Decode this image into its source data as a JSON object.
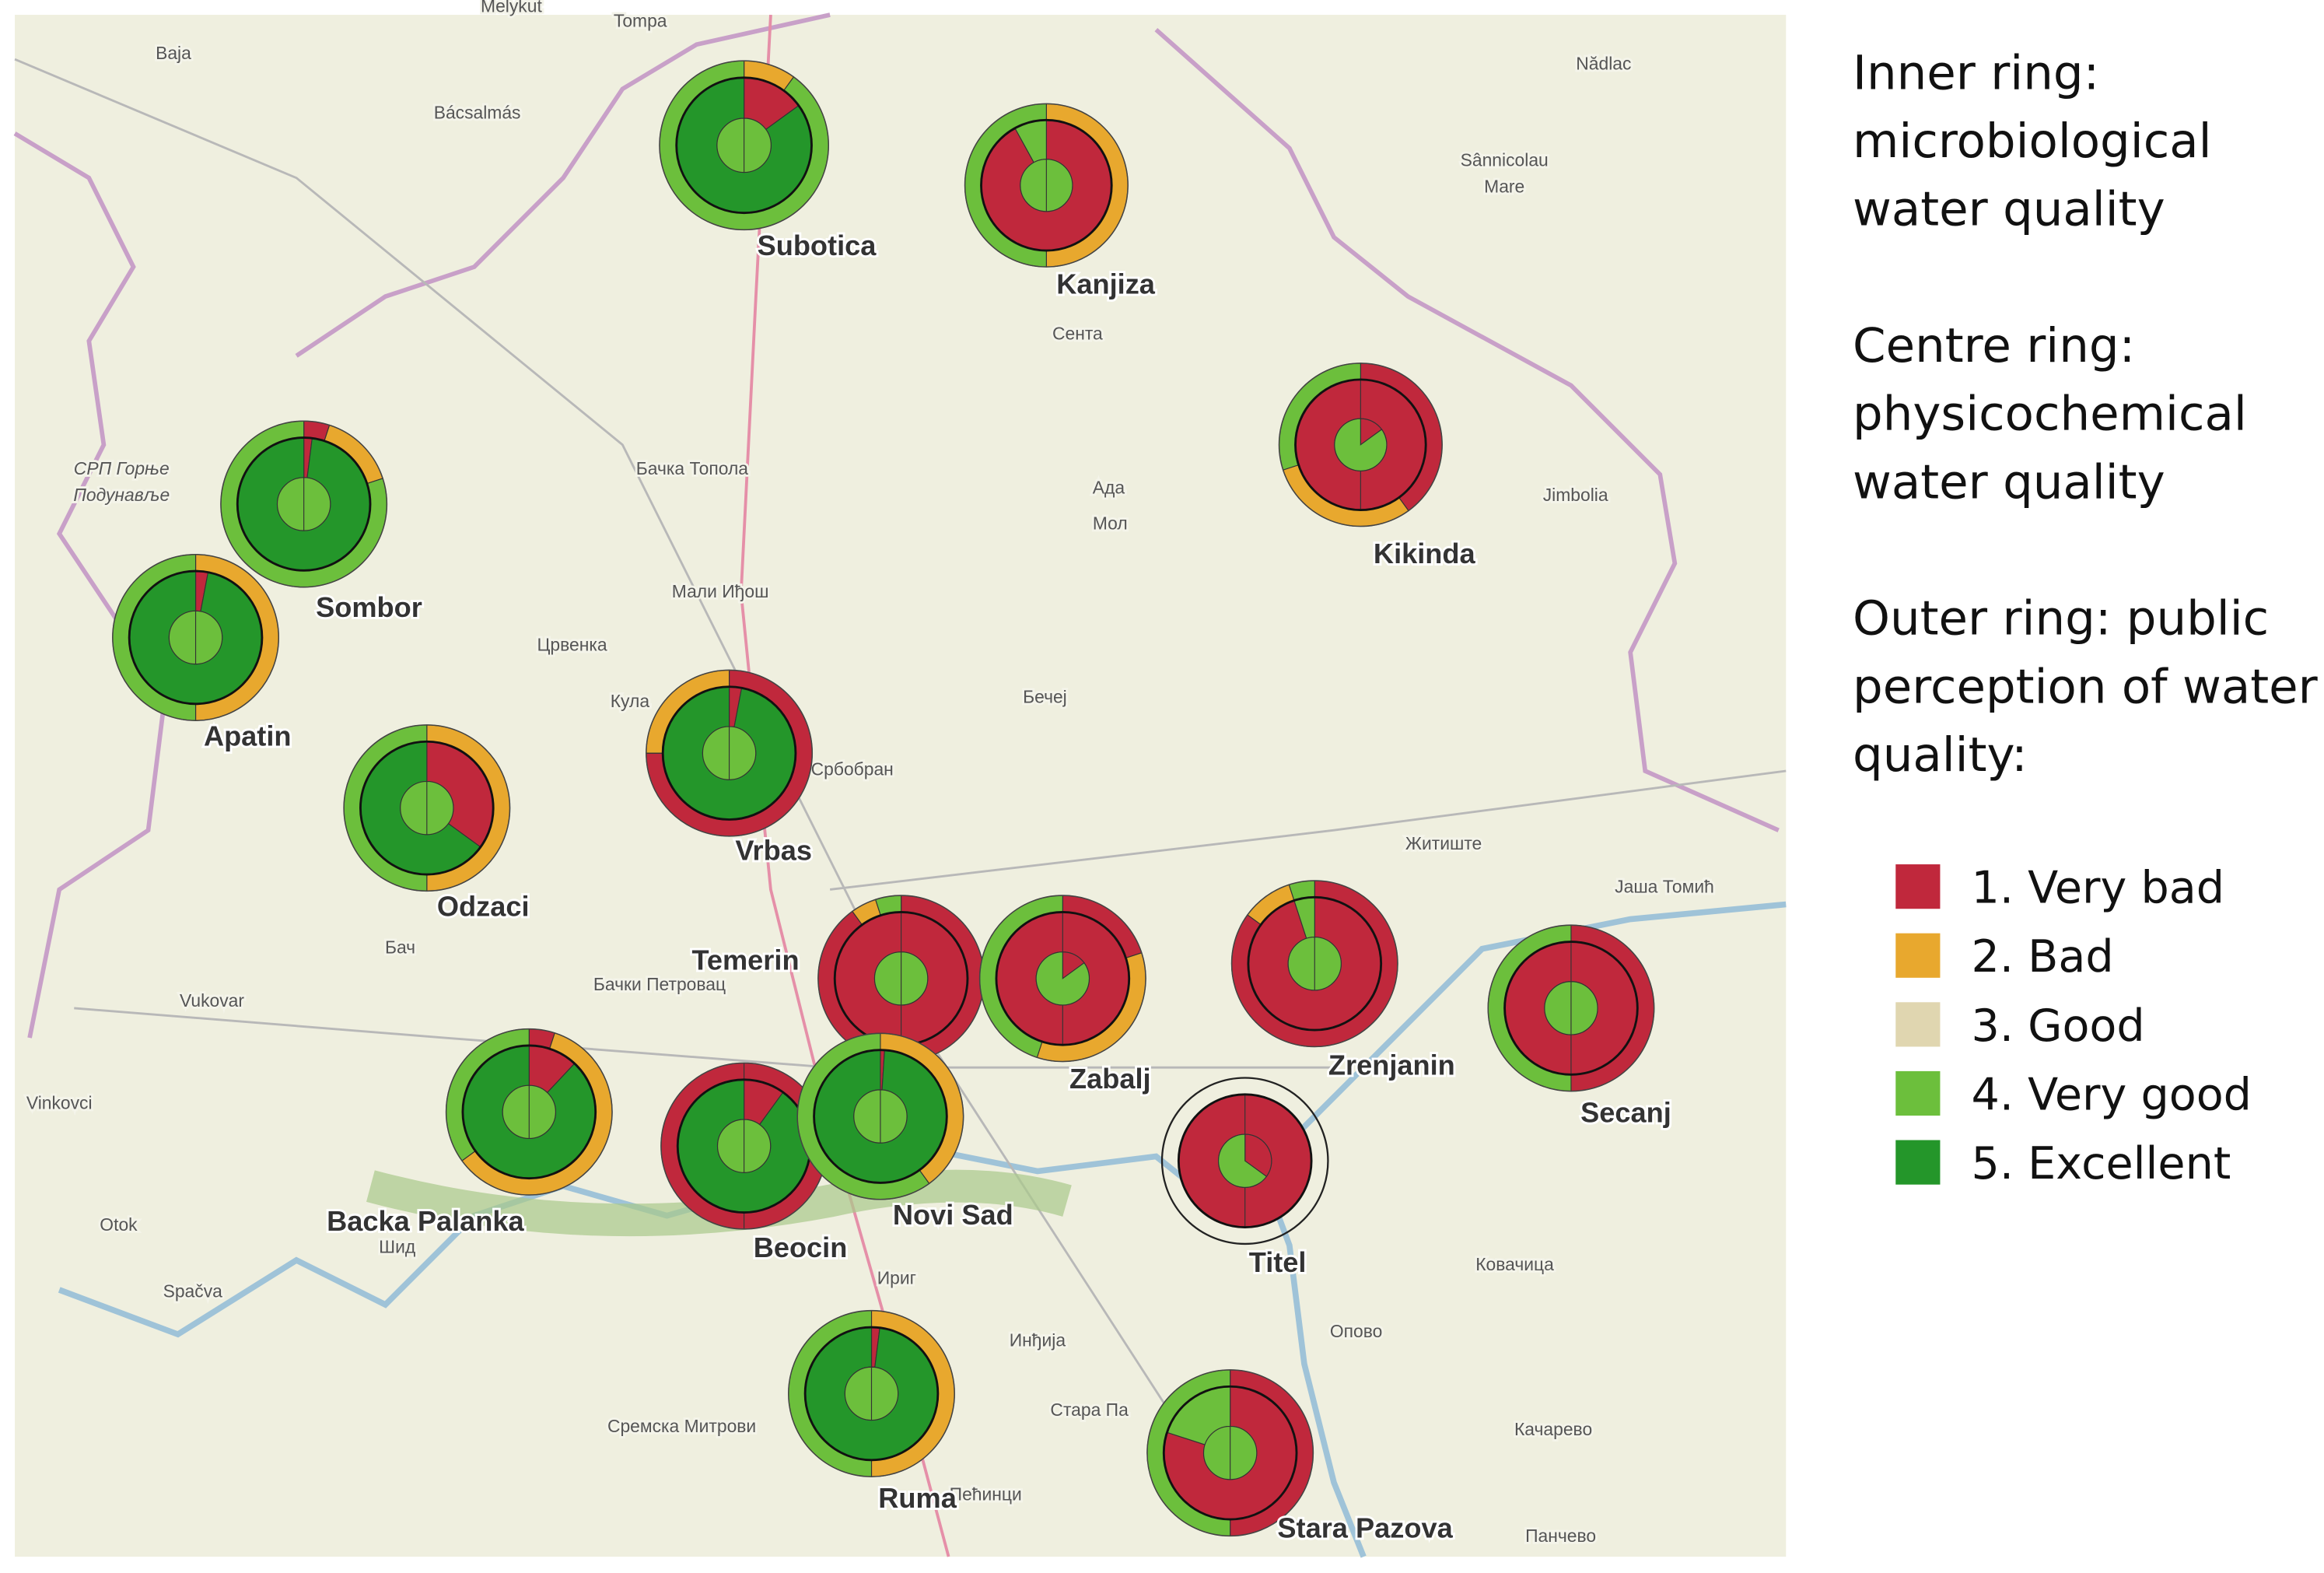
{
  "map_labels": [
    "Melykut",
    "Tompa",
    "Baja",
    "Bácsalmás",
    "Nădlac",
    "Sânnicolau",
    "Mare",
    "Сента",
    "Ада",
    "Мол",
    "Jimbolia",
    "Бачка Топола",
    "Мали Иђош",
    "Црвенка",
    "Кула",
    "Бечеј",
    "Србобран",
    "Житиште",
    "Јаша Томић",
    "Бач",
    "Бачки Петровац",
    "Vukovar",
    "Vinkovci",
    "Otok",
    "Шид",
    "Spačva",
    "Ириг",
    "Ковачица",
    "Инђија",
    "Опово",
    "Сремска Митрови",
    "Стара Па",
    "Качарево",
    "Пећинци",
    "Панчево",
    "СРП Горње",
    "Подунавље"
  ],
  "legend": {
    "descriptions": [
      [
        "Inner ring:",
        "microbiological",
        "water quality"
      ],
      [
        "Centre ring:",
        "physicochemical",
        "water quality"
      ],
      [
        "Outer ring: public",
        "perception of water",
        "quality:"
      ]
    ],
    "items": [
      {
        "label": "1. Very bad",
        "color": "#c0283c"
      },
      {
        "label": "2. Bad",
        "color": "#e8a82e"
      },
      {
        "label": "3. Good",
        "color": "#e0d6b0"
      },
      {
        "label": "4. Very good",
        "color": "#6cbf3c"
      },
      {
        "label": "5. Excellent",
        "color": "#24962a"
      }
    ]
  },
  "sites": [
    {
      "name": "Subotica",
      "inner": [
        0,
        0,
        0,
        100,
        0
      ],
      "centre": [
        15,
        0,
        0,
        0,
        85
      ],
      "outer": [
        0,
        10,
        0,
        90,
        0
      ]
    },
    {
      "name": "Kanjiza",
      "inner": [
        0,
        0,
        0,
        100,
        0
      ],
      "centre": [
        92,
        0,
        0,
        8,
        0
      ],
      "outer": [
        0,
        50,
        0,
        50,
        0
      ]
    },
    {
      "name": "Kikinda",
      "inner": [
        15,
        0,
        0,
        85,
        0
      ],
      "centre": [
        100,
        0,
        0,
        0,
        0
      ],
      "outer": [
        40,
        30,
        0,
        30,
        0
      ]
    },
    {
      "name": "Sombor",
      "inner": [
        0,
        0,
        0,
        100,
        0
      ],
      "centre": [
        2,
        0,
        0,
        0,
        98
      ],
      "outer": [
        5,
        15,
        0,
        80,
        0
      ]
    },
    {
      "name": "Apatin",
      "inner": [
        0,
        0,
        0,
        100,
        0
      ],
      "centre": [
        3,
        0,
        0,
        0,
        97
      ],
      "outer": [
        0,
        50,
        0,
        50,
        0
      ]
    },
    {
      "name": "Vrbas",
      "inner": [
        0,
        0,
        0,
        100,
        0
      ],
      "centre": [
        3,
        0,
        0,
        0,
        97
      ],
      "outer": [
        75,
        25,
        0,
        0,
        0
      ]
    },
    {
      "name": "Odzaci",
      "inner": [
        0,
        0,
        0,
        100,
        0
      ],
      "centre": [
        35,
        0,
        0,
        0,
        65
      ],
      "outer": [
        0,
        50,
        0,
        50,
        0
      ]
    },
    {
      "name": "Temerin",
      "inner": [
        0,
        0,
        0,
        100,
        0
      ],
      "centre": [
        100,
        0,
        0,
        0,
        0
      ],
      "outer": [
        90,
        5,
        0,
        5,
        0
      ]
    },
    {
      "name": "Zabalj",
      "inner": [
        15,
        0,
        0,
        85,
        0
      ],
      "centre": [
        100,
        0,
        0,
        0,
        0
      ],
      "outer": [
        20,
        35,
        0,
        45,
        0
      ]
    },
    {
      "name": "Zrenjanin",
      "inner": [
        0,
        0,
        0,
        100,
        0
      ],
      "centre": [
        95,
        0,
        0,
        5,
        0
      ],
      "outer": [
        85,
        10,
        0,
        5,
        0
      ]
    },
    {
      "name": "Secanj",
      "inner": [
        0,
        0,
        0,
        100,
        0
      ],
      "centre": [
        100,
        0,
        0,
        0,
        0
      ],
      "outer": [
        50,
        0,
        0,
        50,
        0
      ]
    },
    {
      "name": "Backa Palanka",
      "inner": [
        0,
        0,
        0,
        100,
        0
      ],
      "centre": [
        12,
        0,
        0,
        0,
        88
      ],
      "outer": [
        5,
        60,
        0,
        35,
        0
      ]
    },
    {
      "name": "Beocin",
      "inner": [
        0,
        0,
        0,
        100,
        0
      ],
      "centre": [
        10,
        0,
        0,
        0,
        90
      ],
      "outer": [
        100,
        0,
        0,
        0,
        0
      ]
    },
    {
      "name": "Novi Sad",
      "inner": [
        0,
        0,
        0,
        100,
        0
      ],
      "centre": [
        1,
        0,
        0,
        0,
        99
      ],
      "outer": [
        0,
        40,
        0,
        60,
        0
      ]
    },
    {
      "name": "Titel",
      "inner": [
        35,
        0,
        0,
        65,
        0
      ],
      "centre": [
        100,
        0,
        0,
        0,
        0
      ],
      "outer": null
    },
    {
      "name": "Ruma",
      "inner": [
        0,
        0,
        0,
        100,
        0
      ],
      "centre": [
        2,
        0,
        0,
        0,
        98
      ],
      "outer": [
        0,
        50,
        0,
        50,
        0
      ]
    },
    {
      "name": "Stara Pazova",
      "inner": [
        0,
        0,
        0,
        100,
        0
      ],
      "centre": [
        80,
        0,
        0,
        20,
        0
      ],
      "outer": [
        50,
        0,
        0,
        50,
        0
      ]
    }
  ]
}
